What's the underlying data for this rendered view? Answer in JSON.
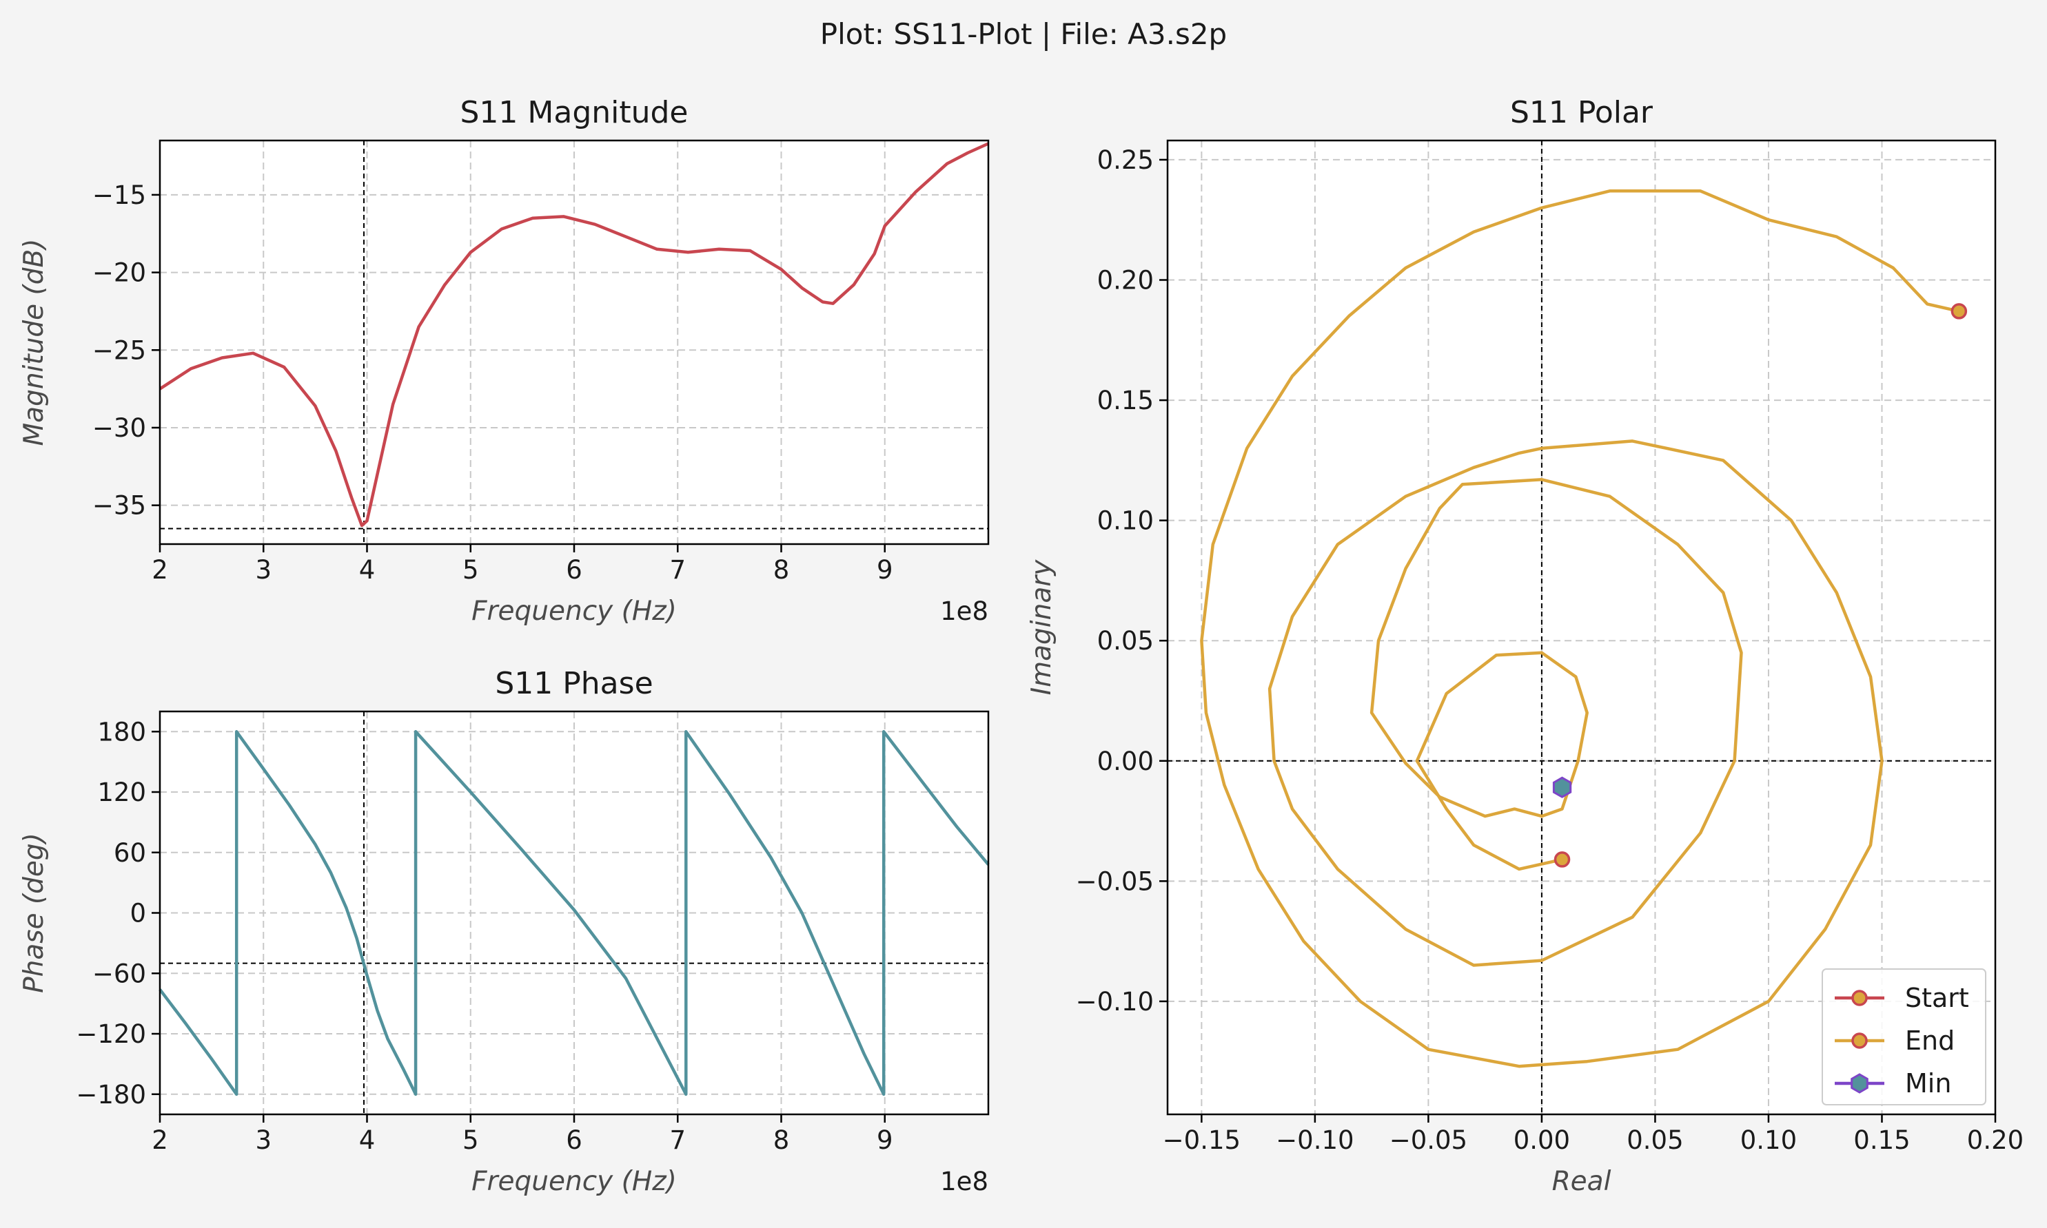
{
  "suptitle": "Plot: SS11-Plot | File: A3.s2p",
  "colors": {
    "magnitude": "#c8464f",
    "phase": "#52929c",
    "polar": "#dca63b",
    "start_marker": "#c8464f",
    "min_face": "#52929c",
    "min_edge": "#7d45c8",
    "grid": "#c8c8c8",
    "ref_line": "#000000"
  },
  "chart_data": [
    {
      "id": "mag",
      "type": "line",
      "title": "S11 Magnitude",
      "xlabel": "Frequency (Hz)",
      "ylabel": "Magnitude (dB)",
      "x_offset_label": "1e8",
      "xlim": [
        2,
        10
      ],
      "ylim": [
        -37.5,
        -11.5
      ],
      "xticks": [
        2,
        3,
        4,
        5,
        6,
        7,
        8,
        9
      ],
      "yticks": [
        -35,
        -30,
        -25,
        -20,
        -15
      ],
      "ytick_labels": [
        "−35",
        "−30",
        "−25",
        "−20",
        "−15"
      ],
      "grid": true,
      "ref_x": 3.97,
      "ref_y": -36.5,
      "series": [
        {
          "x": [
            2.0,
            2.3,
            2.6,
            2.9,
            3.2,
            3.5,
            3.7,
            3.85,
            3.95,
            4.0,
            4.1,
            4.25,
            4.5,
            4.75,
            5.0,
            5.3,
            5.6,
            5.9,
            6.2,
            6.5,
            6.8,
            7.1,
            7.4,
            7.7,
            8.0,
            8.2,
            8.4,
            8.5,
            8.7,
            8.9,
            9.0,
            9.3,
            9.6,
            9.8,
            10.0
          ],
          "y": [
            -27.5,
            -26.2,
            -25.5,
            -25.2,
            -26.1,
            -28.6,
            -31.5,
            -34.5,
            -36.3,
            -36.0,
            -33.0,
            -28.5,
            -23.5,
            -20.8,
            -18.7,
            -17.2,
            -16.5,
            -16.4,
            -16.9,
            -17.7,
            -18.5,
            -18.7,
            -18.5,
            -18.6,
            -19.8,
            -21.0,
            -21.9,
            -22.0,
            -20.8,
            -18.8,
            -17.0,
            -14.8,
            -13.0,
            -12.3,
            -11.7
          ]
        }
      ]
    },
    {
      "id": "phase",
      "type": "line",
      "title": "S11 Phase",
      "xlabel": "Frequency (Hz)",
      "ylabel": "Phase (deg)",
      "x_offset_label": "1e8",
      "xlim": [
        2,
        10
      ],
      "ylim": [
        -200,
        200
      ],
      "xticks": [
        2,
        3,
        4,
        5,
        6,
        7,
        8,
        9
      ],
      "yticks": [
        -180,
        -120,
        -60,
        0,
        60,
        120,
        180
      ],
      "ytick_labels": [
        "−180",
        "−120",
        "−60",
        "0",
        "60",
        "120",
        "180"
      ],
      "grid": true,
      "ref_x": 3.97,
      "ref_y": -50,
      "series": [
        {
          "x": [
            2.0,
            2.25,
            2.5,
            2.74,
            2.74,
            3.0,
            3.25,
            3.5,
            3.65,
            3.8,
            3.9,
            4.0,
            4.1,
            4.2,
            4.35,
            4.47,
            4.47,
            5.0,
            5.5,
            6.0,
            6.5,
            7.08,
            7.08,
            7.5,
            7.9,
            8.2,
            8.5,
            8.8,
            8.99,
            8.99,
            9.4,
            9.7,
            10.0
          ],
          "y": [
            -76,
            -110,
            -145,
            -180,
            180,
            143,
            107,
            68,
            40,
            5,
            -25,
            -62,
            -97,
            -125,
            -155,
            -180,
            180,
            120,
            62,
            3,
            -65,
            -180,
            180,
            118,
            55,
            0,
            -70,
            -140,
            -180,
            180,
            125,
            85,
            48
          ]
        }
      ]
    },
    {
      "id": "polar",
      "type": "line",
      "title": "S11 Polar",
      "xlabel": "Real",
      "ylabel": "Imaginary",
      "xlim": [
        -0.165,
        0.2
      ],
      "ylim": [
        -0.147,
        0.258
      ],
      "xticks": [
        -0.15,
        -0.1,
        -0.05,
        0.0,
        0.05,
        0.1,
        0.15,
        0.2
      ],
      "xtick_labels": [
        "−0.15",
        "−0.10",
        "−0.05",
        "0.00",
        "0.05",
        "0.10",
        "0.15",
        "0.20"
      ],
      "yticks": [
        -0.1,
        -0.05,
        0.0,
        0.05,
        0.1,
        0.15,
        0.2,
        0.25
      ],
      "ytick_labels": [
        "−0.10",
        "−0.05",
        "0.00",
        "0.05",
        "0.10",
        "0.15",
        "0.20",
        "0.25"
      ],
      "grid": true,
      "ref_x": 0.0,
      "ref_y": 0.0,
      "series": [
        {
          "x": [
            0.009,
            -0.01,
            -0.03,
            -0.042,
            -0.055,
            -0.042,
            -0.02,
            0.0,
            0.015,
            0.02,
            0.016,
            0.009,
            0.0,
            -0.012,
            -0.025,
            -0.045,
            -0.06,
            -0.075,
            -0.072,
            -0.06,
            -0.045,
            -0.035,
            0.0,
            0.03,
            0.06,
            0.08,
            0.088,
            0.085,
            0.07,
            0.04,
            0.0,
            -0.03,
            -0.06,
            -0.09,
            -0.11,
            -0.118,
            -0.12,
            -0.11,
            -0.09,
            -0.06,
            -0.03,
            -0.01,
            0.0,
            0.04,
            0.08,
            0.11,
            0.13,
            0.145,
            0.15,
            0.145,
            0.125,
            0.1,
            0.06,
            0.02,
            -0.01,
            -0.05,
            -0.08,
            -0.105,
            -0.125,
            -0.14,
            -0.148,
            -0.15,
            -0.145,
            -0.13,
            -0.11,
            -0.085,
            -0.06,
            -0.03,
            0.0,
            0.03,
            0.07,
            0.1,
            0.13,
            0.155,
            0.17,
            0.184
          ],
          "y": [
            -0.041,
            -0.045,
            -0.035,
            -0.02,
            0.0,
            0.028,
            0.044,
            0.045,
            0.035,
            0.02,
            0.0,
            -0.02,
            -0.023,
            -0.02,
            -0.023,
            -0.015,
            -0.001,
            0.02,
            0.05,
            0.08,
            0.105,
            0.115,
            0.117,
            0.11,
            0.09,
            0.07,
            0.045,
            0.0,
            -0.03,
            -0.065,
            -0.083,
            -0.085,
            -0.07,
            -0.045,
            -0.02,
            0.0,
            0.03,
            0.06,
            0.09,
            0.11,
            0.122,
            0.128,
            0.13,
            0.133,
            0.125,
            0.1,
            0.07,
            0.035,
            0.0,
            -0.035,
            -0.07,
            -0.1,
            -0.12,
            -0.125,
            -0.127,
            -0.12,
            -0.1,
            -0.075,
            -0.045,
            -0.01,
            0.02,
            0.05,
            0.09,
            0.13,
            0.16,
            0.185,
            0.205,
            0.22,
            0.23,
            0.237,
            0.237,
            0.225,
            0.218,
            0.205,
            0.19,
            0.187
          ]
        }
      ],
      "markers": [
        {
          "name": "Start",
          "x": 0.009,
          "y": -0.041
        },
        {
          "name": "End",
          "x": 0.184,
          "y": 0.187
        },
        {
          "name": "Min",
          "x": 0.009,
          "y": -0.011
        }
      ],
      "legend": {
        "position": "lower-right",
        "entries": [
          "Start",
          "End",
          "Min"
        ]
      }
    }
  ]
}
